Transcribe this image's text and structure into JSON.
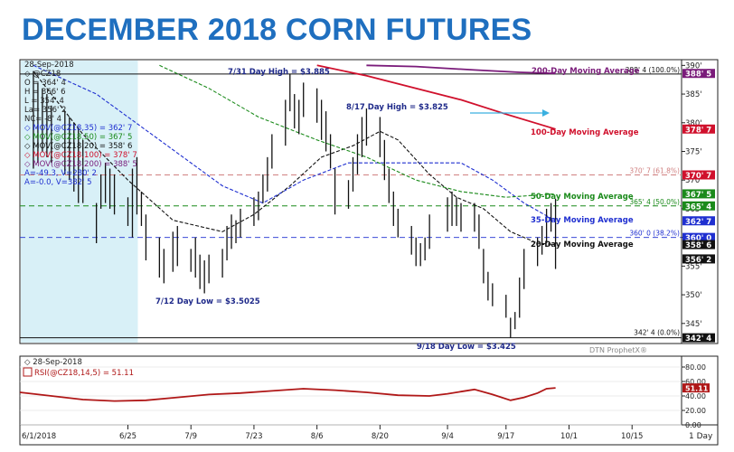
{
  "page_title": "DECEMBER 2018 CORN FUTURES",
  "colors": {
    "bars": "#111111",
    "ma20": "#111111",
    "ma35": "#1f2fd0",
    "ma50": "#1a8a1a",
    "ma100": "#d0102c",
    "ma200": "#7a1b7a",
    "rsi": "#b01818",
    "fib_line": "#d08080",
    "title": "#1f6fbf",
    "shade": "#d8f0f7"
  },
  "legend": {
    "date": "28-Sep-2018",
    "symbol": "@CZ18",
    "open": "O = 364' 4",
    "high": "H = 366' 6",
    "low": "L = 354' 4",
    "last": "La= 356' 2",
    "net_change": "NC= -8' 4",
    "mov35": "MOV(@CZ18,35) = 362' 7",
    "mov50": "MOV(@CZ18,50) = 367' 5",
    "mov20": "MOV(@CZ18,20) = 358' 6",
    "mov100": "MOV(@CZ18,100) = 378' 7",
    "mov200": "MOV(@CZ18,200) = 388' 5",
    "line_a": "A=-49.3, V=280' 2",
    "line_b": "A=-0.0, V=382' 5"
  },
  "rsi_legend": {
    "date": "28-Sep-2018",
    "label": "RSI(@CZ18,14,5) = 51.11"
  },
  "watermark": "DTN ProphetX®",
  "period_label": "1 Day",
  "chart_data": {
    "type": "ohlc",
    "title": "DECEMBER 2018 CORN FUTURES",
    "price_axis_ticks": [
      "390'",
      "385'",
      "380'",
      "375'",
      "370'",
      "365'",
      "360'",
      "355'",
      "350'",
      "345'"
    ],
    "price_axis_values": [
      390,
      385,
      380,
      375,
      370,
      365,
      360,
      355,
      350,
      345
    ],
    "ylim": [
      341.5,
      391
    ],
    "x_tick_labels": [
      "6/1/2018",
      "6/25",
      "7/9",
      "7/23",
      "8/6",
      "8/20",
      "9/4",
      "9/17",
      "10/1",
      "10/15"
    ],
    "x_tick_dates": [
      "2018-06-01",
      "2018-06-25",
      "2018-07-09",
      "2018-07-23",
      "2018-08-06",
      "2018-08-20",
      "2018-09-04",
      "2018-09-17",
      "2018-10-01",
      "2018-10-15"
    ],
    "xlim": [
      "2018-06-01",
      "2018-10-26"
    ],
    "price_boxes": [
      {
        "text": "388' 5",
        "value": 388.6,
        "color": "#7a1b7a"
      },
      {
        "text": "378' 7",
        "value": 378.9,
        "color": "#d0102c"
      },
      {
        "text": "370' 7",
        "value": 370.9,
        "color": "#d0102c"
      },
      {
        "text": "367' 5",
        "value": 367.6,
        "color": "#1a8a1a"
      },
      {
        "text": "365' 4",
        "value": 365.5,
        "color": "#1a8a1a"
      },
      {
        "text": "362' 7",
        "value": 362.9,
        "color": "#1f2fd0"
      },
      {
        "text": "360' 0",
        "value": 360.0,
        "color": "#1f2fd0"
      },
      {
        "text": "358' 6",
        "value": 358.75,
        "color": "#111111"
      },
      {
        "text": "356' 2",
        "value": 356.25,
        "color": "#111111"
      },
      {
        "text": "342' 4",
        "value": 342.5,
        "color": "#111111"
      }
    ],
    "fib_levels": [
      {
        "label": "388' 4 (100.0%)",
        "value": 388.5,
        "color": "#111111"
      },
      {
        "label": "370' 7 (61.8%)",
        "value": 370.9,
        "color": "#d08080"
      },
      {
        "label": "365' 4 (50.0%)",
        "value": 365.5,
        "color": "#1a8a1a"
      },
      {
        "label": "360' 0 (38.2%)",
        "value": 360.0,
        "color": "#1f2fd0"
      },
      {
        "label": "342' 4 (0.0%)",
        "value": 342.5,
        "color": "#111111"
      }
    ],
    "annotations": [
      {
        "text": "7/31 Day High = $3.885",
        "date": "2018-07-31",
        "value": 388.5,
        "color": "#1f2a8a"
      },
      {
        "text": "8/17 Day High = $3.825",
        "date": "2018-08-17",
        "value": 382.5,
        "color": "#1f2a8a"
      },
      {
        "text": "7/12 Day Low = $3.5025",
        "date": "2018-07-12",
        "value": 350.25,
        "color": "#1f2a8a"
      },
      {
        "text": "9/18 Day Low = $3.425",
        "date": "2018-09-18",
        "value": 342.5,
        "color": "#1f2a8a"
      },
      {
        "text": "200-Day Moving Average",
        "color": "#7a1b7a"
      },
      {
        "text": "100-Day Moving Average",
        "color": "#d0102c"
      },
      {
        "text": "50-Day Moving Average",
        "color": "#1a8a1a"
      },
      {
        "text": "35-Day Moving Average",
        "color": "#1f2fd0"
      },
      {
        "text": "20-Day Moving Average",
        "color": "#111111"
      }
    ],
    "ohlc": [
      {
        "date": "2018-06-04",
        "high": 389,
        "low": 372
      },
      {
        "date": "2018-06-05",
        "high": 387,
        "low": 373
      },
      {
        "date": "2018-06-06",
        "high": 386,
        "low": 375
      },
      {
        "date": "2018-06-07",
        "high": 385,
        "low": 374
      },
      {
        "date": "2018-06-08",
        "high": 383,
        "low": 373
      },
      {
        "date": "2018-06-11",
        "high": 382,
        "low": 371
      },
      {
        "date": "2018-06-12",
        "high": 381,
        "low": 370
      },
      {
        "date": "2018-06-13",
        "high": 380,
        "low": 368
      },
      {
        "date": "2018-06-14",
        "high": 379,
        "low": 366
      },
      {
        "date": "2018-06-15",
        "high": 377,
        "low": 366
      },
      {
        "date": "2018-06-18",
        "high": 366,
        "low": 359
      },
      {
        "date": "2018-06-19",
        "high": 371,
        "low": 365
      },
      {
        "date": "2018-06-20",
        "high": 373,
        "low": 366
      },
      {
        "date": "2018-06-21",
        "high": 372,
        "low": 365
      },
      {
        "date": "2018-06-22",
        "high": 371,
        "low": 364
      },
      {
        "date": "2018-06-25",
        "high": 367,
        "low": 362
      },
      {
        "date": "2018-06-26",
        "high": 372,
        "low": 360
      },
      {
        "date": "2018-06-27",
        "high": 374,
        "low": 364
      },
      {
        "date": "2018-06-28",
        "high": 368,
        "low": 362
      },
      {
        "date": "2018-06-29",
        "high": 364,
        "low": 356
      },
      {
        "date": "2018-07-02",
        "high": 360,
        "low": 353
      },
      {
        "date": "2018-07-03",
        "high": 358,
        "low": 352
      },
      {
        "date": "2018-07-05",
        "high": 361,
        "low": 354
      },
      {
        "date": "2018-07-06",
        "high": 362,
        "low": 355
      },
      {
        "date": "2018-07-09",
        "high": 358,
        "low": 354
      },
      {
        "date": "2018-07-10",
        "high": 360,
        "low": 353
      },
      {
        "date": "2018-07-11",
        "high": 357,
        "low": 351
      },
      {
        "date": "2018-07-12",
        "high": 356,
        "low": 350.25
      },
      {
        "date": "2018-07-13",
        "high": 357,
        "low": 352
      },
      {
        "date": "2018-07-16",
        "high": 358,
        "low": 353
      },
      {
        "date": "2018-07-17",
        "high": 362,
        "low": 356
      },
      {
        "date": "2018-07-18",
        "high": 364,
        "low": 358
      },
      {
        "date": "2018-07-19",
        "high": 363,
        "low": 359
      },
      {
        "date": "2018-07-20",
        "high": 365,
        "low": 360
      },
      {
        "date": "2018-07-23",
        "high": 367,
        "low": 362
      },
      {
        "date": "2018-07-24",
        "high": 368,
        "low": 363
      },
      {
        "date": "2018-07-25",
        "high": 371,
        "low": 366
      },
      {
        "date": "2018-07-26",
        "high": 374,
        "low": 368
      },
      {
        "date": "2018-07-27",
        "high": 378,
        "low": 372
      },
      {
        "date": "2018-07-30",
        "high": 384,
        "low": 376
      },
      {
        "date": "2018-07-31",
        "high": 388.5,
        "low": 382
      },
      {
        "date": "2018-08-01",
        "high": 385,
        "low": 379
      },
      {
        "date": "2018-08-02",
        "high": 384,
        "low": 378
      },
      {
        "date": "2018-08-03",
        "high": 387,
        "low": 381
      },
      {
        "date": "2018-08-06",
        "high": 386,
        "low": 380
      },
      {
        "date": "2018-08-07",
        "high": 384,
        "low": 377
      },
      {
        "date": "2018-08-08",
        "high": 382,
        "low": 375
      },
      {
        "date": "2018-08-09",
        "high": 378,
        "low": 372
      },
      {
        "date": "2018-08-10",
        "high": 372,
        "low": 364
      },
      {
        "date": "2018-08-13",
        "high": 370,
        "low": 365
      },
      {
        "date": "2018-08-14",
        "high": 374,
        "low": 368
      },
      {
        "date": "2018-08-15",
        "high": 378,
        "low": 371
      },
      {
        "date": "2018-08-16",
        "high": 381,
        "low": 374
      },
      {
        "date": "2018-08-17",
        "high": 382.5,
        "low": 376
      },
      {
        "date": "2018-08-20",
        "high": 381,
        "low": 374
      },
      {
        "date": "2018-08-21",
        "high": 377,
        "low": 370
      },
      {
        "date": "2018-08-22",
        "high": 372,
        "low": 366
      },
      {
        "date": "2018-08-23",
        "high": 368,
        "low": 362
      },
      {
        "date": "2018-08-24",
        "high": 365,
        "low": 360
      },
      {
        "date": "2018-08-27",
        "high": 362,
        "low": 357
      },
      {
        "date": "2018-08-28",
        "high": 360,
        "low": 355
      },
      {
        "date": "2018-08-29",
        "high": 359,
        "low": 355
      },
      {
        "date": "2018-08-30",
        "high": 360,
        "low": 356
      },
      {
        "date": "2018-08-31",
        "high": 364,
        "low": 358
      },
      {
        "date": "2018-09-04",
        "high": 367,
        "low": 361
      },
      {
        "date": "2018-09-05",
        "high": 368,
        "low": 362
      },
      {
        "date": "2018-09-06",
        "high": 367,
        "low": 362
      },
      {
        "date": "2018-09-07",
        "high": 366,
        "low": 361
      },
      {
        "date": "2018-09-10",
        "high": 366,
        "low": 361
      },
      {
        "date": "2018-09-11",
        "high": 364,
        "low": 358
      },
      {
        "date": "2018-09-12",
        "high": 358,
        "low": 352
      },
      {
        "date": "2018-09-13",
        "high": 354,
        "low": 349
      },
      {
        "date": "2018-09-14",
        "high": 352,
        "low": 348
      },
      {
        "date": "2018-09-17",
        "high": 350,
        "low": 346
      },
      {
        "date": "2018-09-18",
        "high": 346,
        "low": 342.5
      },
      {
        "date": "2018-09-19",
        "high": 347,
        "low": 344
      },
      {
        "date": "2018-09-20",
        "high": 353,
        "low": 346
      },
      {
        "date": "2018-09-21",
        "high": 358,
        "low": 351
      },
      {
        "date": "2018-09-24",
        "high": 360,
        "low": 355
      },
      {
        "date": "2018-09-25",
        "high": 362,
        "low": 357
      },
      {
        "date": "2018-09-26",
        "high": 365,
        "low": 359
      },
      {
        "date": "2018-09-27",
        "high": 366,
        "low": 361
      },
      {
        "date": "2018-09-28",
        "high": 366.75,
        "low": 354.5
      }
    ],
    "moving_averages": [
      {
        "name": "20-Day Moving Average",
        "color": "#111111",
        "dash": "dash",
        "points": [
          [
            "2018-06-04",
            389
          ],
          [
            "2018-06-15",
            378
          ],
          [
            "2018-06-25",
            370
          ],
          [
            "2018-07-05",
            363
          ],
          [
            "2018-07-16",
            361
          ],
          [
            "2018-07-23",
            364
          ],
          [
            "2018-07-31",
            369
          ],
          [
            "2018-08-07",
            374
          ],
          [
            "2018-08-14",
            376
          ],
          [
            "2018-08-20",
            378.5
          ],
          [
            "2018-08-24",
            377
          ],
          [
            "2018-08-31",
            371
          ],
          [
            "2018-09-06",
            367
          ],
          [
            "2018-09-12",
            365
          ],
          [
            "2018-09-18",
            361
          ],
          [
            "2018-09-24",
            359
          ],
          [
            "2018-09-28",
            358.75
          ]
        ]
      },
      {
        "name": "35-Day Moving Average",
        "color": "#1f2fd0",
        "dash": "dash",
        "points": [
          [
            "2018-06-04",
            390
          ],
          [
            "2018-06-18",
            385
          ],
          [
            "2018-07-02",
            377
          ],
          [
            "2018-07-16",
            369
          ],
          [
            "2018-07-25",
            366
          ],
          [
            "2018-08-03",
            370
          ],
          [
            "2018-08-13",
            373
          ],
          [
            "2018-08-22",
            373
          ],
          [
            "2018-08-31",
            373
          ],
          [
            "2018-09-07",
            373
          ],
          [
            "2018-09-14",
            370
          ],
          [
            "2018-09-21",
            366
          ],
          [
            "2018-09-28",
            362.9
          ]
        ]
      },
      {
        "name": "50-Day Moving Average",
        "color": "#1a8a1a",
        "dash": "dash",
        "points": [
          [
            "2018-07-02",
            390
          ],
          [
            "2018-07-13",
            386
          ],
          [
            "2018-07-24",
            381
          ],
          [
            "2018-08-06",
            377
          ],
          [
            "2018-08-17",
            374
          ],
          [
            "2018-08-28",
            370
          ],
          [
            "2018-09-07",
            368
          ],
          [
            "2018-09-17",
            367
          ],
          [
            "2018-09-28",
            367.6
          ]
        ]
      },
      {
        "name": "100-Day Moving Average",
        "color": "#d0102c",
        "dash": "solid",
        "points": [
          [
            "2018-08-06",
            390
          ],
          [
            "2018-08-17",
            388.2
          ],
          [
            "2018-08-28",
            386
          ],
          [
            "2018-09-07",
            384
          ],
          [
            "2018-09-17",
            381.5
          ],
          [
            "2018-09-28",
            378.9
          ]
        ]
      },
      {
        "name": "200-Day Moving Average",
        "color": "#7a1b7a",
        "dash": "solid",
        "points": [
          [
            "2018-08-17",
            390
          ],
          [
            "2018-08-28",
            389.8
          ],
          [
            "2018-09-10",
            389.2
          ],
          [
            "2018-09-20",
            388.8
          ],
          [
            "2018-09-28",
            388.6
          ]
        ]
      }
    ],
    "rsi": {
      "label": "RSI(@CZ18,14,5) = 51.11",
      "ticks": [
        "80.00",
        "60.00",
        "40.00",
        "20.00",
        "0.00"
      ],
      "tick_values": [
        80,
        60,
        40,
        20,
        0
      ],
      "ylim": [
        0,
        95
      ],
      "last_value": 51.11,
      "points": [
        [
          "2018-06-01",
          45
        ],
        [
          "2018-06-08",
          40
        ],
        [
          "2018-06-15",
          35
        ],
        [
          "2018-06-22",
          33
        ],
        [
          "2018-06-29",
          34
        ],
        [
          "2018-07-06",
          38
        ],
        [
          "2018-07-13",
          42
        ],
        [
          "2018-07-20",
          44
        ],
        [
          "2018-07-27",
          47
        ],
        [
          "2018-08-03",
          50
        ],
        [
          "2018-08-10",
          48
        ],
        [
          "2018-08-17",
          45
        ],
        [
          "2018-08-24",
          41
        ],
        [
          "2018-08-31",
          40
        ],
        [
          "2018-09-04",
          43
        ],
        [
          "2018-09-07",
          46
        ],
        [
          "2018-09-10",
          49
        ],
        [
          "2018-09-14",
          42
        ],
        [
          "2018-09-18",
          34
        ],
        [
          "2018-09-21",
          38
        ],
        [
          "2018-09-24",
          44
        ],
        [
          "2018-09-26",
          50
        ],
        [
          "2018-09-28",
          51.11
        ]
      ]
    }
  }
}
